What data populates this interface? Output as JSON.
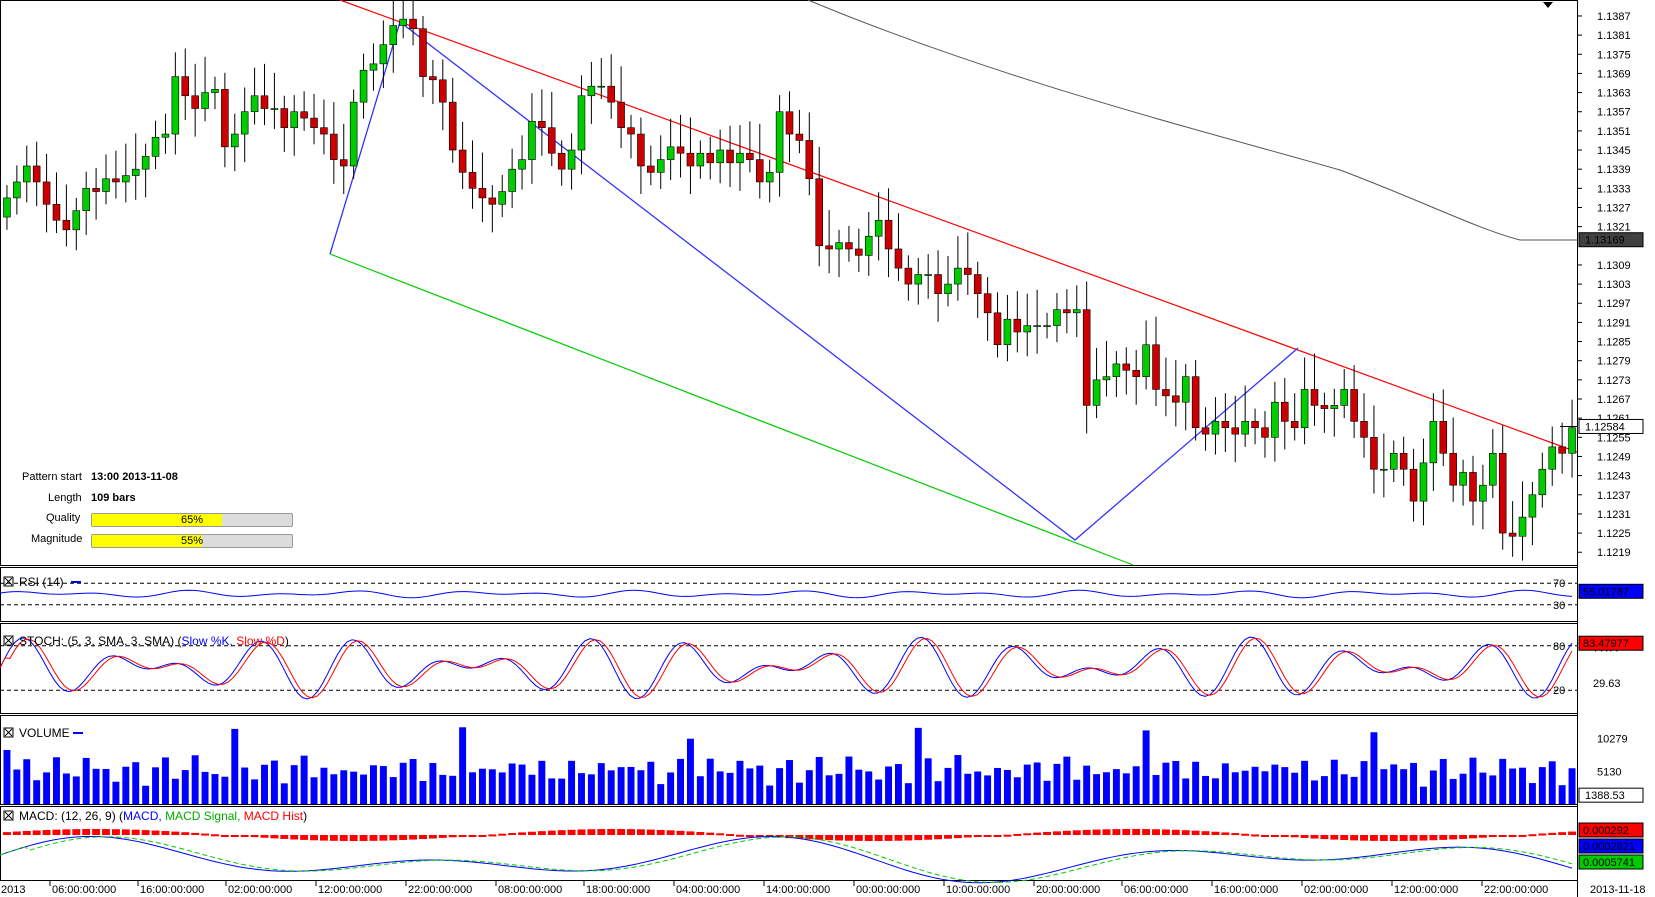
{
  "pattern_info": {
    "start_label": "Pattern start",
    "start_value": "13:00 2013-11-08",
    "length_label": "Length",
    "length_value": "109 bars",
    "quality_label": "Quality",
    "quality_value": "65%",
    "quality_fraction": 0.65,
    "magnitude_label": "Magnitude",
    "magnitude_value": "55%",
    "magnitude_fraction": 0.55
  },
  "panes": {
    "rsi_label": "RSI (14)",
    "stoch_label": "STOCH: (5, 3, SMA, 3, SMA)",
    "stoch_k_label": "Slow %K,",
    "stoch_d_label": "Slow %D",
    "volume_label": "VOLUME",
    "macd_label": "MACD: (12, 26, 9)",
    "macd_line_label": "MACD,",
    "macd_signal_label": "MACD Signal,",
    "macd_hist_label": "MACD Hist"
  },
  "chart_data": {
    "type": "candlestick",
    "instrument_price_axis": [
      "1.1387",
      "1.1381",
      "1.1375",
      "1.1369",
      "1.1363",
      "1.1357",
      "1.1351",
      "1.1345",
      "1.1339",
      "1.1333",
      "1.1327",
      "1.1321",
      "1.1309",
      "1.1303",
      "1.1297",
      "1.1291",
      "1.1285",
      "1.1279",
      "1.1273",
      "1.1267",
      "1.1261",
      "1.1255",
      "1.1249",
      "1.1243",
      "1.1237",
      "1.1231",
      "1.1225",
      "1.1219"
    ],
    "price_range": [
      1.1215,
      1.1392
    ],
    "time_labels": [
      "2013",
      "06:00:00:000",
      "16:00:00:000",
      "02:00:00:000",
      "12:00:00:000",
      "22:00:00:000",
      "08:00:00:000",
      "18:00:00:000",
      "04:00:00:000",
      "14:00:00:000",
      "00:00:00:000",
      "10:00:00:000",
      "20:00:00:000",
      "06:00:00:000",
      "16:00:00:000",
      "02:00:00:000",
      "12:00:00:000",
      "22:00:00:000",
      "2013-11-18"
    ],
    "last_price": "1.12584",
    "ma_value": "1.13169",
    "candles_close": [
      1.133,
      1.1335,
      1.134,
      1.1335,
      1.1328,
      1.1323,
      1.132,
      1.1326,
      1.1333,
      1.1332,
      1.1336,
      1.1335,
      1.1337,
      1.1339,
      1.1343,
      1.1349,
      1.135,
      1.1368,
      1.1362,
      1.1358,
      1.1363,
      1.1364,
      1.1346,
      1.135,
      1.1357,
      1.1362,
      1.1358,
      1.1358,
      1.1352,
      1.1357,
      1.1355,
      1.1352,
      1.135,
      1.1342,
      1.134,
      1.136,
      1.137,
      1.1372,
      1.1378,
      1.1384,
      1.1386,
      1.1383,
      1.1368,
      1.1367,
      1.136,
      1.1345,
      1.1338,
      1.1333,
      1.133,
      1.1328,
      1.1332,
      1.1339,
      1.1342,
      1.1354,
      1.1352,
      1.1344,
      1.1339,
      1.1345,
      1.1362,
      1.1365,
      1.1365,
      1.136,
      1.1352,
      1.135,
      1.134,
      1.1338,
      1.1342,
      1.1346,
      1.1344,
      1.134,
      1.1344,
      1.1341,
      1.1345,
      1.1341,
      1.1344,
      1.1342,
      1.1335,
      1.1338,
      1.1357,
      1.135,
      1.1348,
      1.1336,
      1.1315,
      1.1314,
      1.1316,
      1.1314,
      1.1312,
      1.1318,
      1.1323,
      1.1314,
      1.1308,
      1.1303,
      1.1306,
      1.1306,
      1.13,
      1.1303,
      1.1308,
      1.1306,
      1.13,
      1.1294,
      1.1284,
      1.1292,
      1.1288,
      1.129,
      1.129,
      1.129,
      1.1295,
      1.1294,
      1.1295,
      1.1265,
      1.1273,
      1.1274,
      1.1278,
      1.1276,
      1.1274,
      1.1284,
      1.127,
      1.1268,
      1.1266,
      1.1274,
      1.1258,
      1.1256,
      1.126,
      1.1258,
      1.1256,
      1.126,
      1.1258,
      1.1255,
      1.1266,
      1.126,
      1.1258,
      1.127,
      1.1265,
      1.1264,
      1.1265,
      1.127,
      1.126,
      1.1255,
      1.1245,
      1.1245,
      1.125,
      1.1245,
      1.1235,
      1.1247,
      1.126,
      1.125,
      1.124,
      1.1244,
      1.1235,
      1.124,
      1.125,
      1.1225,
      1.1224,
      1.123,
      1.1237,
      1.1245,
      1.1252,
      1.125,
      1.1258
    ]
  },
  "indicators": {
    "rsi_value": "55.01787",
    "rsi_levels": [
      "70",
      "30"
    ],
    "stoch_levels": [
      "80",
      "20"
    ],
    "stoch_ticks": [
      "77.77",
      "29.63"
    ],
    "stoch_value": "83.47977",
    "volume_ticks": [
      "10279",
      "5130"
    ],
    "volume_value": "1388.53",
    "macd_hist_value": "0.000292",
    "macd_value": "0.0002821",
    "macd_signal_value": "0.0005741"
  }
}
